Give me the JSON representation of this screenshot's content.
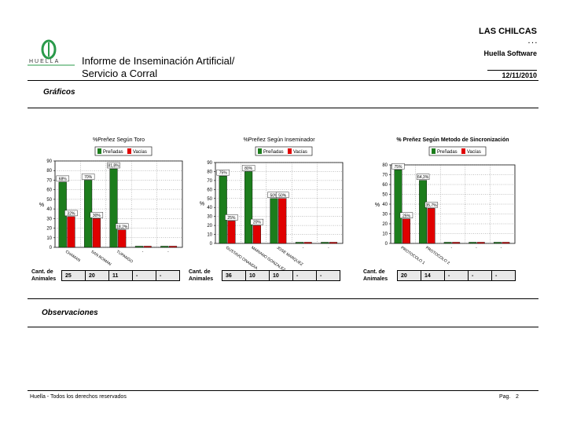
{
  "header": {
    "company": "LAS CHILCAS",
    "dots": ". . .",
    "software": "Huella Software",
    "date": "12/11/2010",
    "logo_text": "HUELLA",
    "title_line1": "Informe de Inseminación Artificial/",
    "title_line2": "Servicio a Corral"
  },
  "sections": {
    "graphs": "Gráficos",
    "observations": "Observaciones"
  },
  "footer": {
    "rights": "Huella - Todos los derechos reservados",
    "page_label": "Pag.",
    "page_number": "2"
  },
  "chart_data": [
    {
      "type": "bar",
      "title": "%Preñez Según Toro",
      "y_label": "%",
      "categories": [
        "CHAMAN",
        "SAN ROMAN",
        "TUPANGO",
        "-",
        "-"
      ],
      "series": [
        {
          "name": "Preñadas",
          "color": "#1c7d1c",
          "values": [
            68,
            70,
            81.8,
            0,
            0
          ],
          "value_labels": [
            "68%",
            "70%",
            "81,8%",
            null,
            null
          ]
        },
        {
          "name": "Vacías",
          "color": "#e00000",
          "values": [
            32,
            30,
            18.2,
            0,
            0
          ],
          "value_labels": [
            "32%",
            "30%",
            "18,2%",
            null,
            null
          ]
        }
      ],
      "ylim": [
        0,
        90
      ],
      "yticks": [
        0,
        10,
        20,
        30,
        40,
        50,
        60,
        70,
        80,
        90
      ],
      "grid": true,
      "counts": {
        "label": "Cant. de Animales",
        "values": [
          "25",
          "20",
          "11",
          "-",
          "-"
        ]
      }
    },
    {
      "type": "bar",
      "title": "%Preñez Según Inseminador",
      "y_label": "%",
      "categories": [
        "GUSTAVO ONANDIA",
        "MARIANO GONZALEZ",
        "JOSE MARQUEZ",
        "-",
        "-"
      ],
      "series": [
        {
          "name": "Preñadas",
          "color": "#1c7d1c",
          "values": [
            75,
            80,
            50,
            0,
            0
          ],
          "value_labels": [
            "75%",
            "80%",
            "50%",
            null,
            null
          ]
        },
        {
          "name": "Vacías",
          "color": "#e00000",
          "values": [
            25,
            20,
            50,
            0,
            0
          ],
          "value_labels": [
            "25%",
            "20%",
            "50%",
            null,
            null
          ]
        }
      ],
      "ylim": [
        0,
        90
      ],
      "yticks": [
        0,
        10,
        20,
        30,
        40,
        50,
        60,
        70,
        80,
        90
      ],
      "grid": true,
      "counts": {
        "label": "Cant. de Animales",
        "values": [
          "36",
          "10",
          "10",
          "-",
          "-"
        ]
      }
    },
    {
      "type": "bar",
      "title": "% Preñez Según Metodo de Sincronización",
      "y_label": "%",
      "categories": [
        "PROTOCOLO 1",
        "PROTOCOLO 2",
        "-",
        "-",
        "-"
      ],
      "series": [
        {
          "name": "Preñadas",
          "color": "#1c7d1c",
          "values": [
            75,
            64.3,
            0,
            0,
            0
          ],
          "value_labels": [
            "75%",
            "64,3%",
            null,
            null,
            null
          ]
        },
        {
          "name": "Vacías",
          "color": "#e00000",
          "values": [
            25,
            35.7,
            0,
            0,
            0
          ],
          "value_labels": [
            "25%",
            "35,7%",
            null,
            null,
            null
          ]
        }
      ],
      "ylim": [
        0,
        80
      ],
      "yticks": [
        0,
        10,
        20,
        30,
        40,
        50,
        60,
        70,
        80
      ],
      "grid": true,
      "counts": {
        "label": "Cant. de Animales",
        "values": [
          "20",
          "14",
          "-",
          "-",
          "-"
        ]
      }
    }
  ]
}
